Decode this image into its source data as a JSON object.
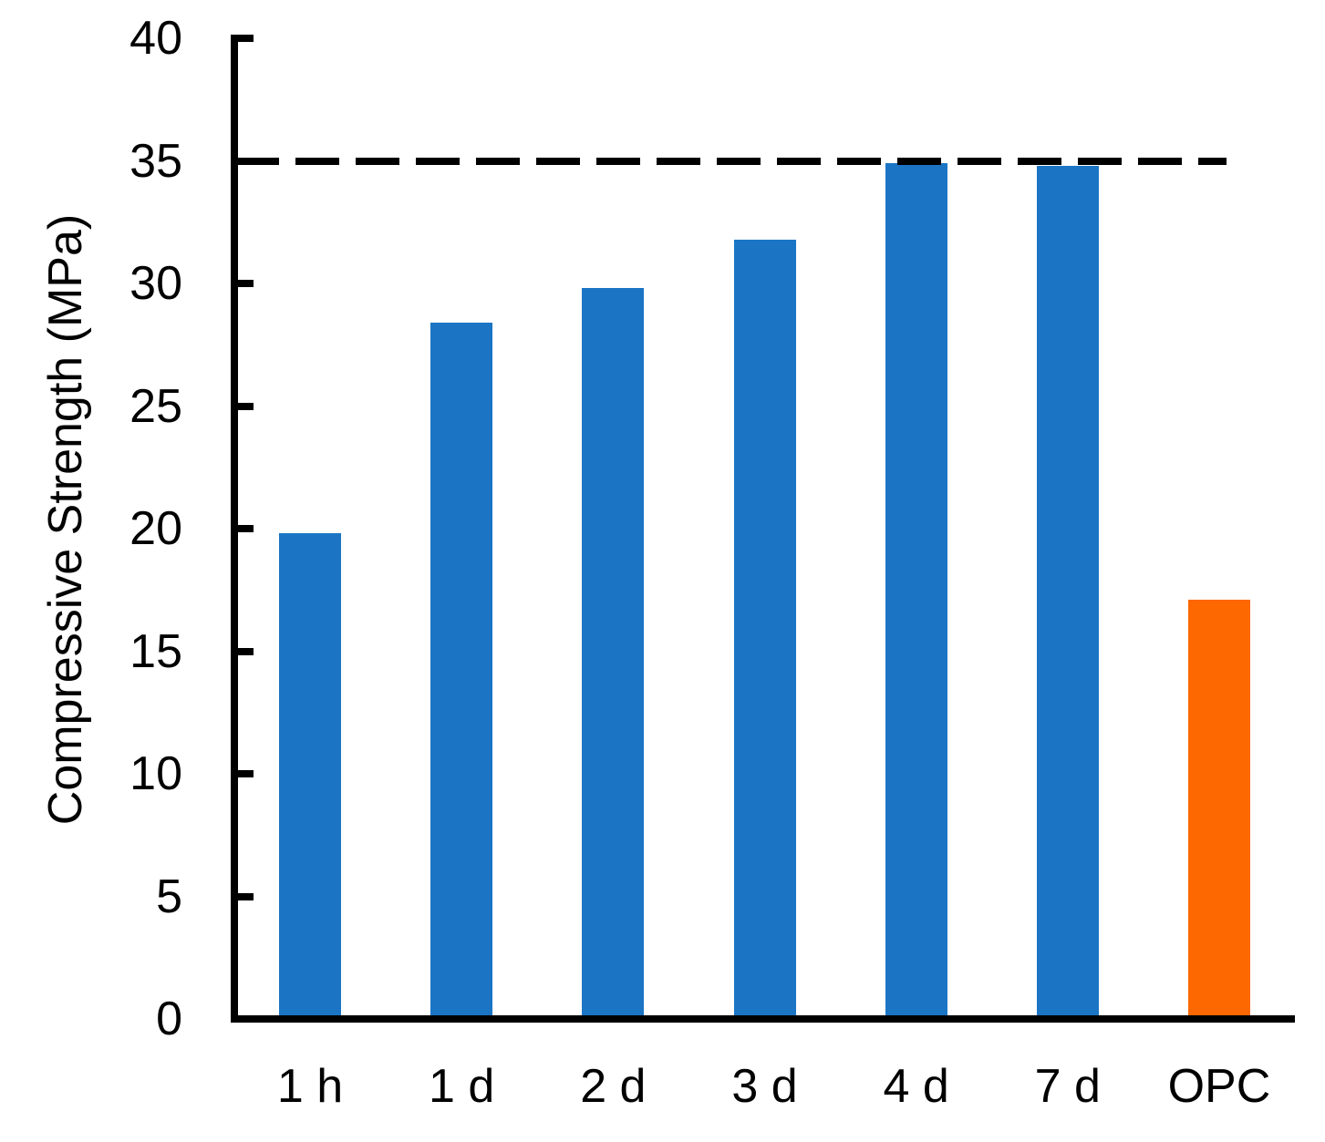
{
  "chart_data": {
    "type": "bar",
    "title": "",
    "xlabel": "",
    "ylabel": "Compressive Strength (MPa)",
    "ylim": [
      0,
      40
    ],
    "yticks": [
      0,
      5,
      10,
      15,
      20,
      25,
      30,
      35,
      40
    ],
    "categories": [
      "1 h",
      "1 d",
      "2 d",
      "3 d",
      "4 d",
      "7 d",
      "OPC"
    ],
    "values": [
      19.8,
      28.4,
      29.8,
      31.8,
      34.9,
      34.8,
      17.1
    ],
    "bar_colors": [
      "#1B75C4",
      "#1B75C4",
      "#1B75C4",
      "#1B75C4",
      "#1B75C4",
      "#1B75C4",
      "#FE6800"
    ],
    "reference_line": {
      "value": 35,
      "style": "dashed",
      "color": "#000000"
    },
    "grid": false,
    "legend": false
  },
  "colors": {
    "bar_blue": "#1B75C4",
    "bar_orange": "#FE6800",
    "axis": "#000000",
    "background": "#FFFFFF"
  }
}
